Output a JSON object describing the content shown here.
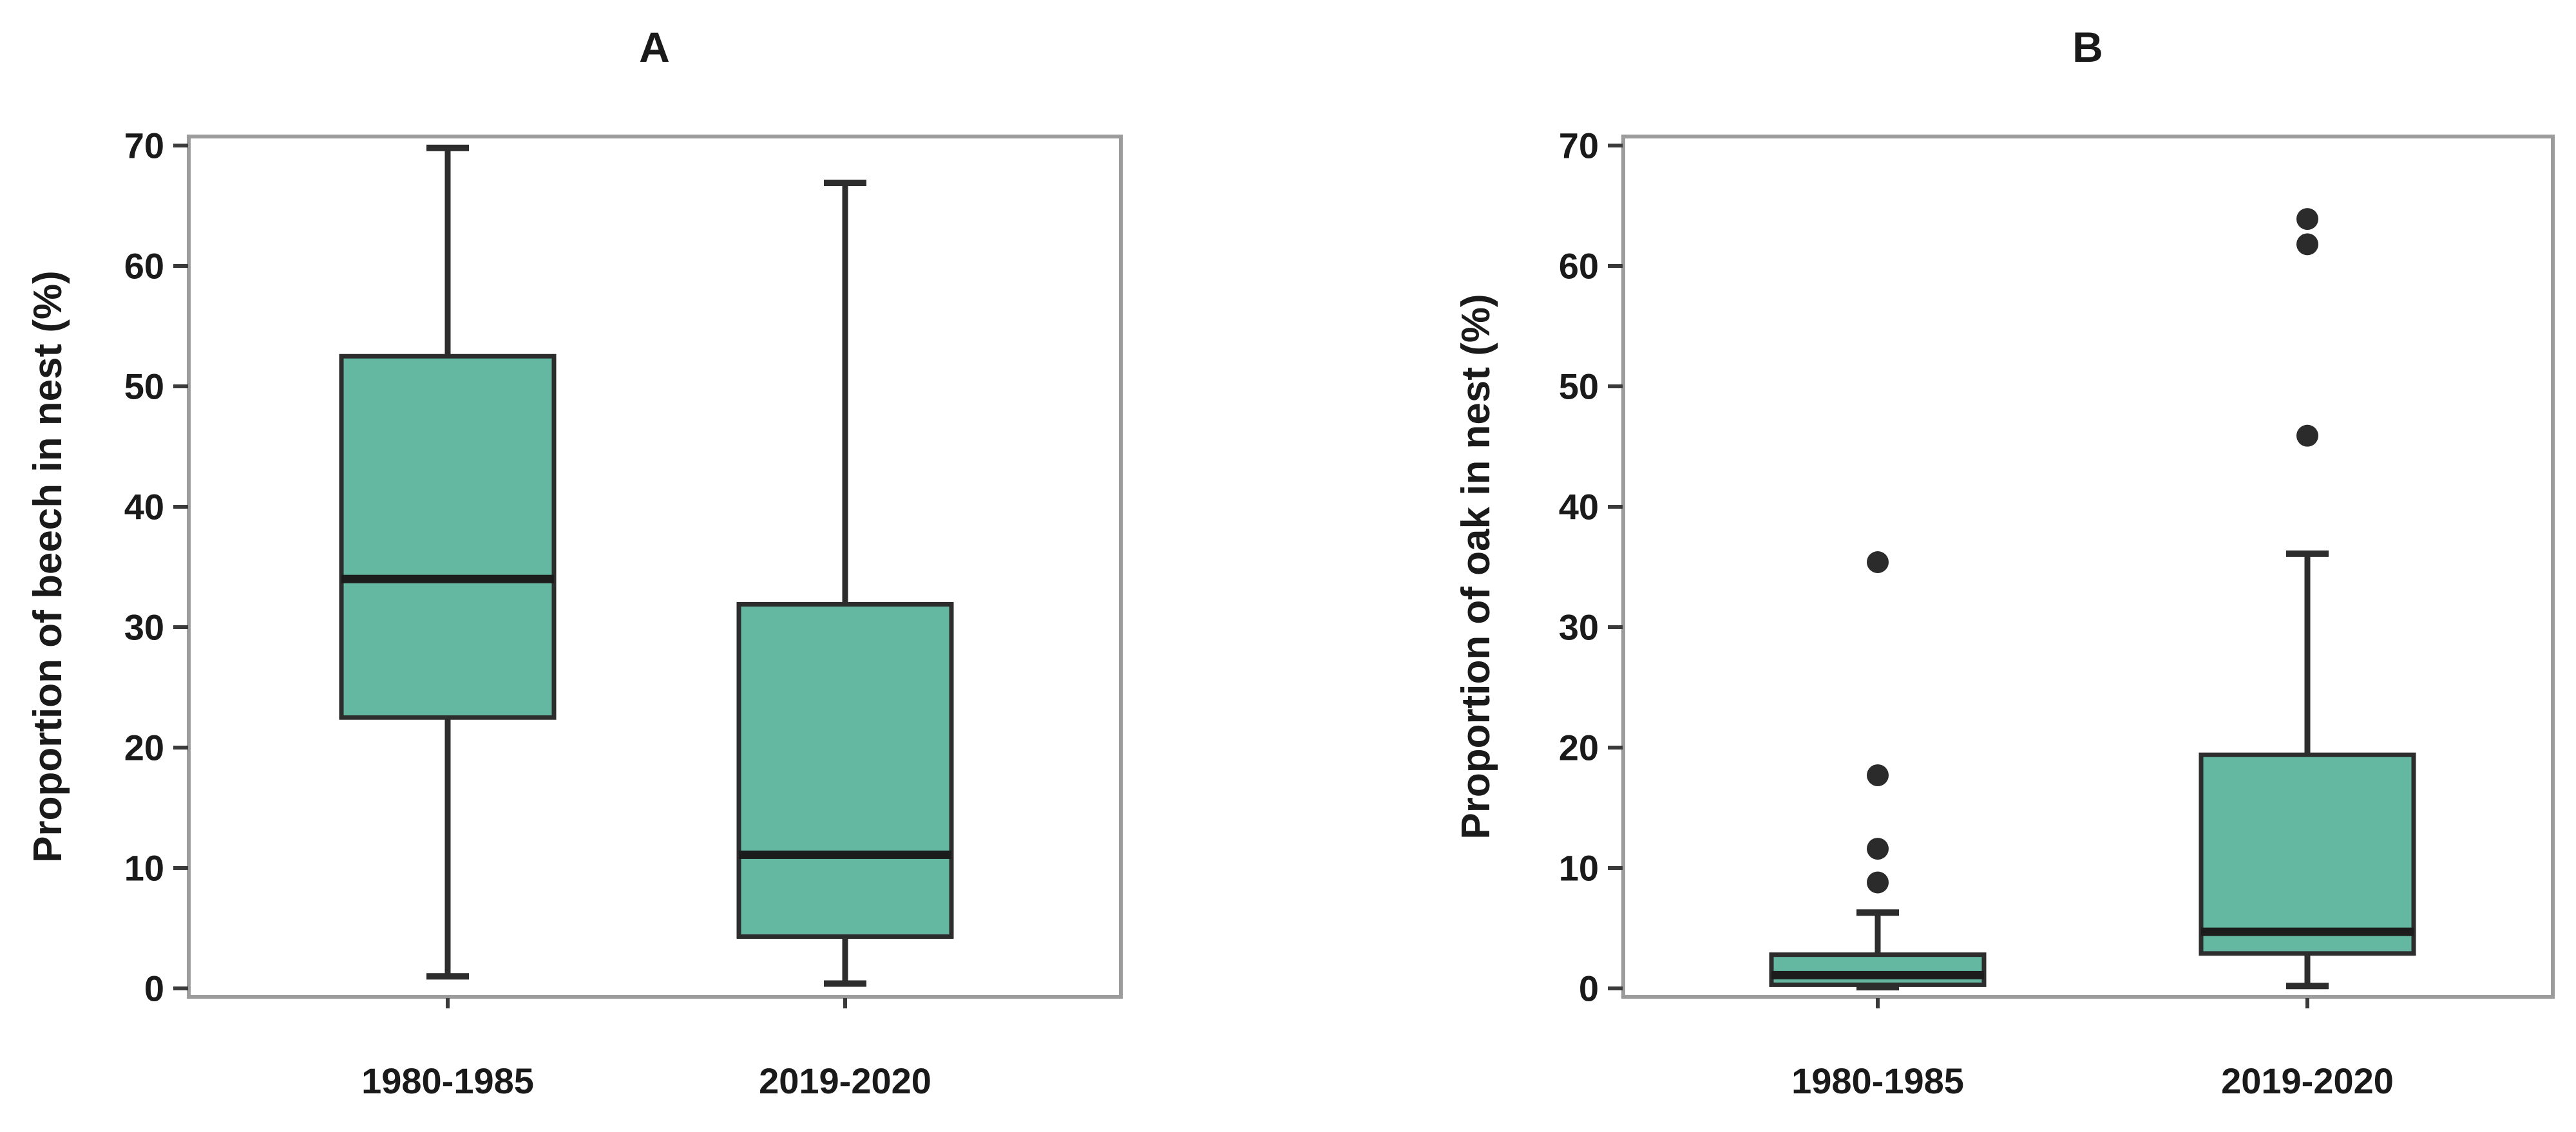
{
  "figure": {
    "description": "Two-panel box plot comparison of nest material proportions between 1980-1985 and 2019-2020"
  },
  "style": {
    "box_fill": "#64b7a1",
    "line_color": "#2d2d2d",
    "median_color": "#1c1c1c",
    "frame_color": "#9c9c9c",
    "tick_color": "#3a3a3a",
    "text_color": "#1a1a1a",
    "outlier_color": "#2b2b2b",
    "background": "#ffffff"
  },
  "chart_data": [
    {
      "type": "boxplot",
      "title": "A",
      "ylabel": "Proportion of beech in nest (%)",
      "xlabel": "",
      "ylim": [
        0,
        70
      ],
      "yticks": [
        0,
        10,
        20,
        30,
        40,
        50,
        60,
        70
      ],
      "grid": false,
      "categories": [
        "1980-1985",
        "2019-2020"
      ],
      "series": [
        {
          "category": "1980-1985",
          "whisker_low": 1.0,
          "q1": 22.5,
          "median": 34.0,
          "q3": 52.5,
          "whisker_high": 69.8,
          "outliers": []
        },
        {
          "category": "2019-2020",
          "whisker_low": 0.4,
          "q1": 4.3,
          "median": 11.1,
          "q3": 31.9,
          "whisker_high": 66.9,
          "outliers": []
        }
      ]
    },
    {
      "type": "boxplot",
      "title": "B",
      "ylabel": "Proportion of oak in nest (%)",
      "xlabel": "",
      "ylim": [
        0,
        70
      ],
      "yticks": [
        0,
        10,
        20,
        30,
        40,
        50,
        60,
        70
      ],
      "grid": false,
      "categories": [
        "1980-1985",
        "2019-2020"
      ],
      "series": [
        {
          "category": "1980-1985",
          "whisker_low": 0.1,
          "q1": 0.3,
          "median": 1.1,
          "q3": 2.8,
          "whisker_high": 6.3,
          "outliers": [
            8.8,
            11.6,
            17.7,
            35.4
          ]
        },
        {
          "category": "2019-2020",
          "whisker_low": 0.2,
          "q1": 2.9,
          "median": 4.7,
          "q3": 19.4,
          "whisker_high": 36.1,
          "outliers": [
            45.9,
            61.8,
            63.9
          ]
        }
      ]
    }
  ]
}
